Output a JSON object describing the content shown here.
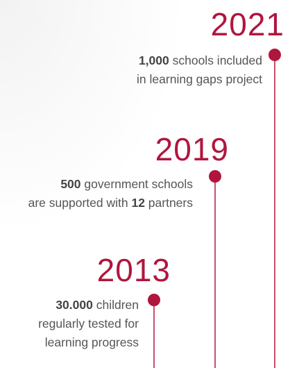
{
  "milestones": [
    {
      "year": "2021",
      "lines": [
        [
          {
            "text": "1,000",
            "bold": true
          },
          {
            "text": " schools included"
          }
        ],
        [
          {
            "text": "in learning gaps project"
          }
        ]
      ]
    },
    {
      "year": "2019",
      "lines": [
        [
          {
            "text": "500",
            "bold": true
          },
          {
            "text": " government schools"
          }
        ],
        [
          {
            "text": "are supported with "
          },
          {
            "text": "12",
            "bold": true
          },
          {
            "text": " partners"
          }
        ]
      ]
    },
    {
      "year": "2013",
      "lines": [
        [
          {
            "text": "30.000",
            "bold": true
          },
          {
            "text": " children"
          }
        ],
        [
          {
            "text": "regularly tested for"
          }
        ],
        [
          {
            "text": "learning progress"
          }
        ]
      ]
    }
  ]
}
